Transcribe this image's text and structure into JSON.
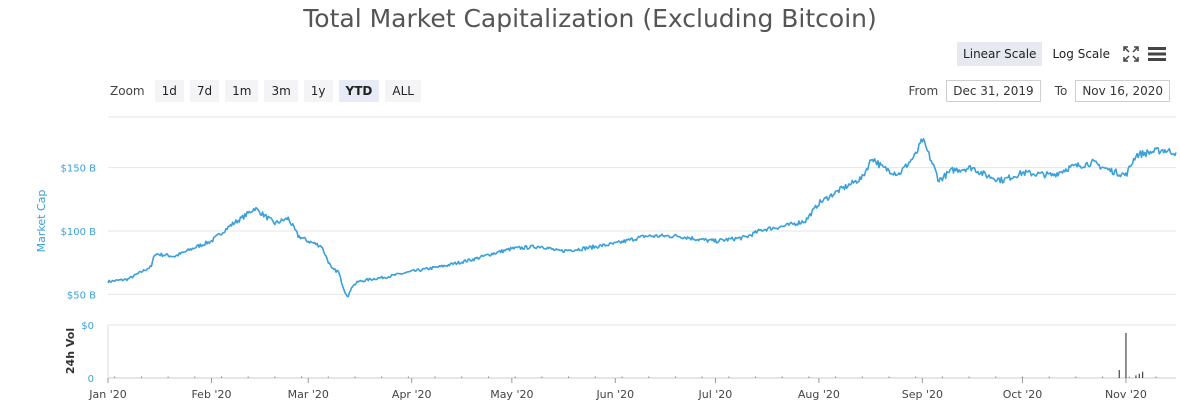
{
  "title": "Total Market Capitalization (Excluding Bitcoin)",
  "scale": {
    "linear_label": "Linear Scale",
    "log_label": "Log Scale",
    "active": "linear"
  },
  "toolbar_icons": [
    "fullscreen-icon",
    "menu-icon"
  ],
  "zoom": {
    "label": "Zoom",
    "options": [
      "1d",
      "7d",
      "1m",
      "3m",
      "1y",
      "YTD",
      "ALL"
    ],
    "active": "YTD"
  },
  "range": {
    "from_label": "From",
    "from_value": "Dec 31, 2019",
    "to_label": "To",
    "to_value": "Nov 16, 2020"
  },
  "colors": {
    "line": "#3aa0d8",
    "axis_text": "#3aa0d8",
    "grid": "#e6e6e6",
    "volume": "#444444"
  },
  "chart_data": {
    "type": "line",
    "ylabel": "Market Cap",
    "y_ticks": [
      "$50 B",
      "$100 B",
      "$150 B"
    ],
    "ylim": [
      40,
      190
    ],
    "x_ticks": [
      "Jan '20",
      "Feb '20",
      "Mar '20",
      "Apr '20",
      "May '20",
      "Jun '20",
      "Jul '20",
      "Aug '20",
      "Sep '20",
      "Oct '20",
      "Nov '20"
    ],
    "x_tick_dates": [
      "2020-01-01",
      "2020-02-01",
      "2020-03-01",
      "2020-04-01",
      "2020-05-01",
      "2020-06-01",
      "2020-07-01",
      "2020-08-01",
      "2020-09-01",
      "2020-10-01",
      "2020-11-01"
    ],
    "x_range": [
      "2020-01-01",
      "2020-11-16"
    ],
    "series": [
      {
        "x": [
          "2020-01-01",
          "2020-01-07",
          "2020-01-14",
          "2020-01-15",
          "2020-01-21",
          "2020-01-28",
          "2020-02-01",
          "2020-02-07",
          "2020-02-10",
          "2020-02-14",
          "2020-02-16",
          "2020-02-20",
          "2020-02-24",
          "2020-02-27",
          "2020-03-01",
          "2020-03-05",
          "2020-03-08",
          "2020-03-10",
          "2020-03-12",
          "2020-03-13",
          "2020-03-14",
          "2020-03-16",
          "2020-03-20",
          "2020-03-25",
          "2020-04-01",
          "2020-04-10",
          "2020-04-20",
          "2020-04-25",
          "2020-05-01",
          "2020-05-10",
          "2020-05-15",
          "2020-05-22",
          "2020-06-01",
          "2020-06-10",
          "2020-06-20",
          "2020-06-27",
          "2020-07-01",
          "2020-07-10",
          "2020-07-15",
          "2020-07-22",
          "2020-07-28",
          "2020-08-01",
          "2020-08-07",
          "2020-08-14",
          "2020-08-17",
          "2020-08-20",
          "2020-08-25",
          "2020-08-30",
          "2020-09-01",
          "2020-09-03",
          "2020-09-06",
          "2020-09-10",
          "2020-09-16",
          "2020-09-20",
          "2020-09-25",
          "2020-10-01",
          "2020-10-10",
          "2020-10-15",
          "2020-10-22",
          "2020-10-27",
          "2020-11-01",
          "2020-11-04",
          "2020-11-08",
          "2020-11-12",
          "2020-11-16"
        ],
        "values": [
          60,
          62,
          72,
          82,
          80,
          88,
          92,
          105,
          110,
          118,
          114,
          106,
          110,
          96,
          92,
          88,
          70,
          68,
          52,
          48,
          56,
          60,
          62,
          64,
          68,
          72,
          78,
          82,
          86,
          88,
          84,
          86,
          90,
          96,
          96,
          93,
          92,
          95,
          101,
          104,
          108,
          122,
          132,
          142,
          158,
          150,
          145,
          160,
          172,
          160,
          140,
          148,
          150,
          144,
          140,
          146,
          144,
          150,
          154,
          148,
          144,
          160,
          162,
          164,
          162
        ]
      }
    ],
    "volume": {
      "ylabel": "24h Vol",
      "y_ticks": [
        "0",
        "$0"
      ],
      "x": [
        "2020-10-30",
        "2020-11-01",
        "2020-11-04",
        "2020-11-05",
        "2020-11-06"
      ],
      "values": [
        0.15,
        0.85,
        0.05,
        0.08,
        0.12
      ]
    }
  }
}
